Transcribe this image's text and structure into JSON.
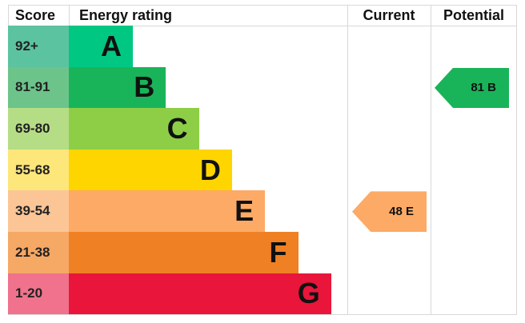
{
  "chart_data": {
    "type": "table",
    "headers": {
      "score": "Score",
      "rating": "Energy rating",
      "current": "Current",
      "potential": "Potential"
    },
    "bands": [
      {
        "score": "92+",
        "letter": "A",
        "color": "#00c781",
        "score_color": "#5cc3a0"
      },
      {
        "score": "81-91",
        "letter": "B",
        "color": "#19b459",
        "score_color": "#6cc48a"
      },
      {
        "score": "69-80",
        "letter": "C",
        "color": "#8dce46",
        "score_color": "#b5dd86"
      },
      {
        "score": "55-68",
        "letter": "D",
        "color": "#ffd500",
        "score_color": "#fde67a"
      },
      {
        "score": "39-54",
        "letter": "E",
        "color": "#fcaa65",
        "score_color": "#fcc596"
      },
      {
        "score": "21-38",
        "letter": "F",
        "color": "#ef8023",
        "score_color": "#f6a865"
      },
      {
        "score": "1-20",
        "letter": "G",
        "color": "#e9153b",
        "score_color": "#f0728c"
      }
    ],
    "current": {
      "value": 48,
      "band": "E",
      "label": "48 E"
    },
    "potential": {
      "value": 81,
      "band": "B",
      "label": "81 B"
    }
  }
}
